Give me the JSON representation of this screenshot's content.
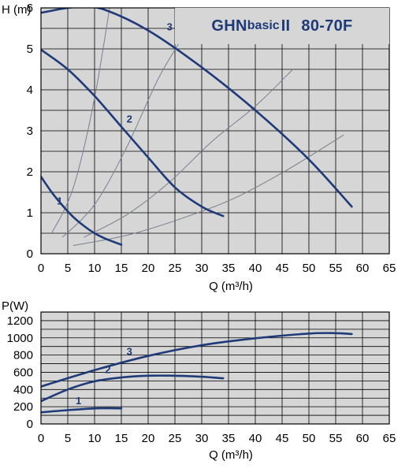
{
  "chart_data": [
    {
      "type": "line",
      "title": "GHNbasicII 80-70F",
      "title_parts": {
        "model_a": "GHN",
        "model_b": "basic",
        "model_c": "II",
        "model_d": "80-70F"
      },
      "ylabel": "H (m)",
      "xlabel": "Q (m³/h)",
      "xlim": [
        0,
        65
      ],
      "ylim": [
        0,
        6
      ],
      "xticks": [
        0,
        5,
        10,
        15,
        20,
        25,
        30,
        35,
        40,
        45,
        50,
        55,
        60,
        65
      ],
      "yticks": [
        0,
        1,
        2,
        3,
        4,
        5,
        6
      ],
      "grid": true,
      "colors": {
        "curve": "#1f3a78",
        "background": "#d6d6d6",
        "grid": "#000000",
        "system_curve": "#7a7f8f"
      },
      "series": [
        {
          "name": "1",
          "label_at": [
            3.5,
            1.2
          ],
          "x": [
            0,
            2,
            4,
            6,
            8,
            10,
            12,
            15
          ],
          "y": [
            1.88,
            1.5,
            1.18,
            0.9,
            0.68,
            0.5,
            0.37,
            0.22
          ]
        },
        {
          "name": "2",
          "label_at": [
            16.5,
            3.2
          ],
          "x": [
            0,
            5,
            10,
            15,
            20,
            25,
            30,
            34
          ],
          "y": [
            4.98,
            4.5,
            3.85,
            3.1,
            2.35,
            1.62,
            1.15,
            0.92
          ]
        },
        {
          "name": "3",
          "label_at": [
            24,
            5.45
          ],
          "x": [
            0,
            5,
            8,
            12,
            20,
            30,
            40,
            50,
            58
          ],
          "y": [
            5.88,
            6.0,
            6.02,
            5.95,
            5.45,
            4.55,
            3.5,
            2.3,
            1.15
          ]
        }
      ],
      "system_curves": [
        {
          "x": [
            2,
            6,
            10,
            14
          ],
          "y": [
            0.5,
            1.6,
            3.8,
            7.0
          ]
        },
        {
          "x": [
            4,
            10,
            16,
            22,
            27.5
          ],
          "y": [
            0.4,
            1.2,
            2.6,
            4.3,
            5.5
          ]
        },
        {
          "x": [
            8,
            16,
            24,
            32,
            40,
            47
          ],
          "y": [
            0.4,
            0.95,
            1.75,
            2.75,
            3.6,
            4.5
          ]
        },
        {
          "x": [
            6,
            16,
            26,
            36,
            46,
            56.5
          ],
          "y": [
            0.2,
            0.45,
            0.85,
            1.35,
            2.05,
            2.9
          ]
        }
      ]
    },
    {
      "type": "line",
      "ylabel": "P(W)",
      "xlabel": "Q (m³/h)",
      "xlim": [
        0,
        65
      ],
      "ylim": [
        0,
        1300
      ],
      "xticks": [
        0,
        5,
        10,
        15,
        20,
        25,
        30,
        35,
        40,
        45,
        50,
        55,
        60,
        65
      ],
      "yticks": [
        0,
        200,
        400,
        600,
        800,
        1000,
        1200
      ],
      "grid": true,
      "series": [
        {
          "name": "1",
          "label_at": [
            7,
            230
          ],
          "x": [
            0,
            5,
            10,
            13,
            15
          ],
          "y": [
            135,
            160,
            180,
            182,
            180
          ]
        },
        {
          "name": "2",
          "label_at": [
            12.5,
            590
          ],
          "x": [
            0,
            5,
            10,
            15,
            20,
            25,
            30,
            34
          ],
          "y": [
            265,
            400,
            495,
            540,
            560,
            560,
            548,
            530
          ]
        },
        {
          "name": "3",
          "label_at": [
            16.5,
            800
          ],
          "x": [
            0,
            10,
            20,
            30,
            40,
            50,
            55,
            58
          ],
          "y": [
            435,
            625,
            790,
            915,
            995,
            1050,
            1055,
            1045
          ]
        }
      ]
    }
  ]
}
